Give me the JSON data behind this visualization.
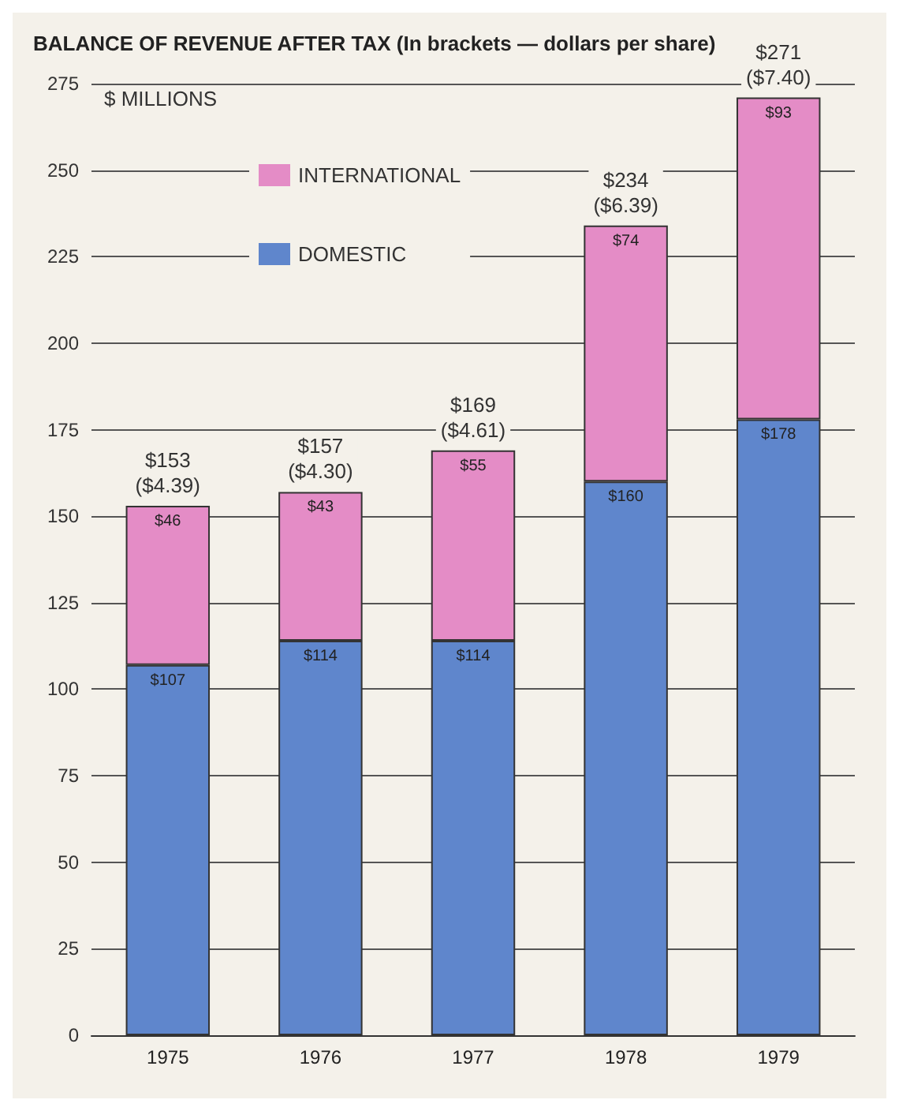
{
  "chart_data": {
    "type": "bar",
    "title": "BALANCE OF REVENUE AFTER TAX (In brackets — dollars per share)",
    "ylabel": "$ MILLIONS",
    "categories": [
      "1975",
      "1976",
      "1977",
      "1978",
      "1979"
    ],
    "series": [
      {
        "name": "DOMESTIC",
        "color": "#5f86cc",
        "values": [
          107,
          114,
          114,
          160,
          178
        ],
        "value_labels": [
          "$107",
          "$114",
          "$114",
          "$160",
          "$178"
        ]
      },
      {
        "name": "INTERNATIONAL",
        "color": "#e48cc6",
        "values": [
          46,
          43,
          55,
          74,
          93
        ],
        "value_labels": [
          "$46",
          "$43",
          "$55",
          "$74",
          "$93"
        ]
      }
    ],
    "stacked": true,
    "totals": [
      "$153\n($4.39)",
      "$157\n($4.30)",
      "$169\n($4.61)",
      "$234\n($6.39)",
      "$271\n($7.40)"
    ],
    "ylim": [
      0,
      275
    ],
    "yticks": [
      0,
      25,
      50,
      75,
      100,
      125,
      150,
      175,
      200,
      225,
      250,
      275
    ],
    "grid": "y",
    "legend": "top left"
  }
}
